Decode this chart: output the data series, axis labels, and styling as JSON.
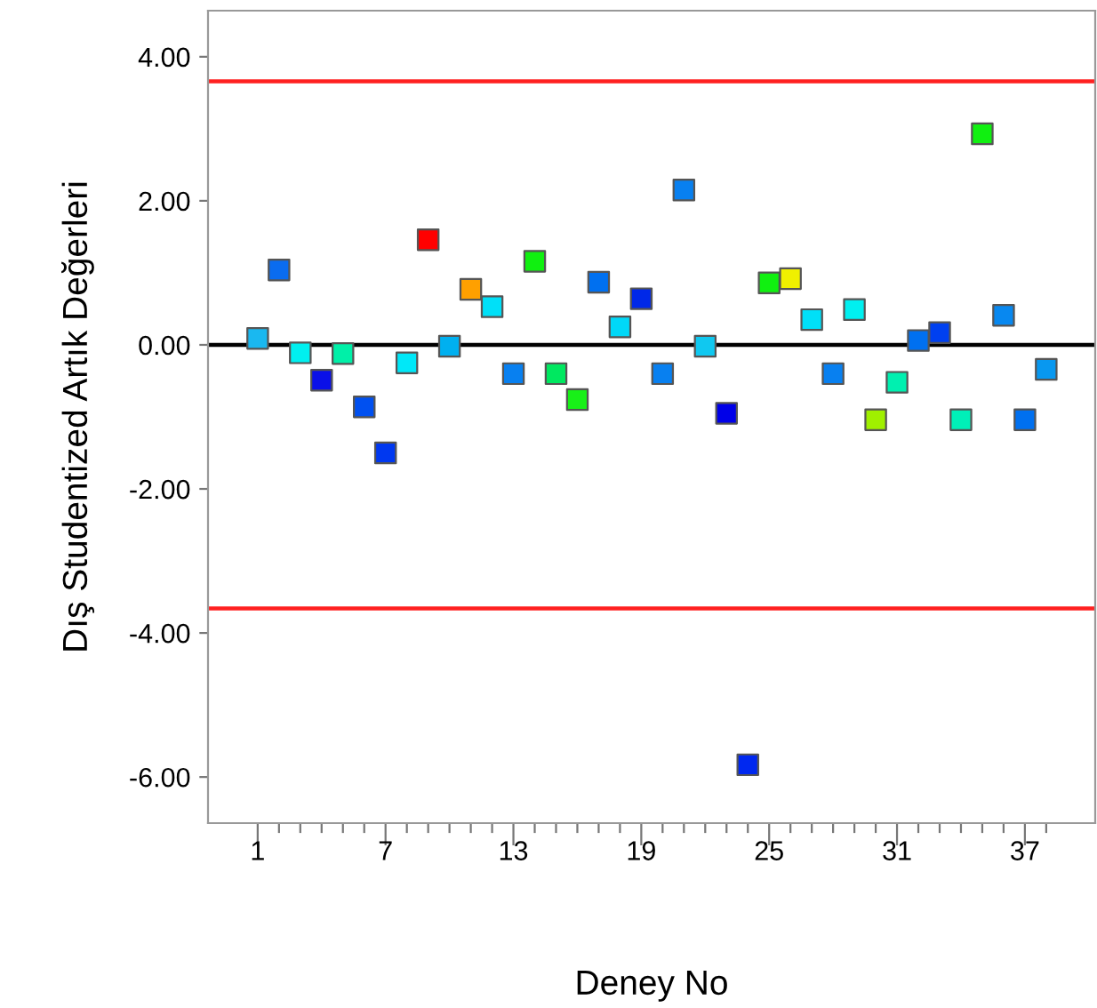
{
  "chart_data": {
    "type": "scatter",
    "xlabel": "Deney No",
    "ylabel": "Dış Studentized Artık Değerleri",
    "x": [
      1,
      2,
      3,
      4,
      5,
      6,
      7,
      8,
      9,
      10,
      11,
      12,
      13,
      14,
      15,
      16,
      17,
      18,
      19,
      20,
      21,
      22,
      23,
      24,
      25,
      26,
      27,
      28,
      29,
      30,
      31,
      32,
      33,
      34,
      35,
      36,
      37,
      38
    ],
    "values": [
      0.09,
      1.04,
      -0.11,
      -0.49,
      -0.12,
      -0.86,
      -1.5,
      -0.25,
      1.46,
      -0.02,
      0.77,
      0.53,
      -0.4,
      1.16,
      -0.4,
      -0.76,
      0.87,
      0.25,
      0.64,
      -0.4,
      2.15,
      -0.02,
      -0.95,
      -5.83,
      0.86,
      0.92,
      0.35,
      -0.4,
      0.49,
      -1.04,
      -0.52,
      0.06,
      0.17,
      -1.04,
      2.93,
      0.41,
      -1.04,
      -0.34
    ],
    "colors": [
      "#1ab8f0",
      "#0a6cf0",
      "#00f0f0",
      "#0a10e8",
      "#00f0a8",
      "#0050f0",
      "#0038f0",
      "#00e8f8",
      "#ff0000",
      "#00b0f0",
      "#ffa000",
      "#00e0f8",
      "#0880f0",
      "#10f010",
      "#00e860",
      "#18f018",
      "#0070f0",
      "#00d8f8",
      "#0028e8",
      "#0880f0",
      "#0880f0",
      "#10c8f0",
      "#0000e8",
      "#0028f0",
      "#10f010",
      "#f0f000",
      "#00e0f8",
      "#0880f0",
      "#00f0f0",
      "#a0f000",
      "#00f0b0",
      "#0070f0",
      "#0040f0",
      "#00f0b8",
      "#10f010",
      "#0888f0",
      "#0070f0",
      "#0898f0"
    ],
    "marker": "square",
    "xlim": [
      -1.33,
      40.3
    ],
    "ylim": [
      -6.64,
      4.64
    ],
    "xticks": [
      1,
      {
        "value": 2,
        "label": null
      },
      {
        "value": 3,
        "label": null
      },
      {
        "value": 4,
        "label": null
      },
      {
        "value": 5,
        "label": null
      },
      {
        "value": 6,
        "label": null
      },
      7,
      {
        "value": 8,
        "label": null
      },
      {
        "value": 9,
        "label": null
      },
      {
        "value": 10,
        "label": null
      },
      {
        "value": 11,
        "label": null
      },
      {
        "value": 12,
        "label": null
      },
      13,
      {
        "value": 14,
        "label": null
      },
      {
        "value": 15,
        "label": null
      },
      {
        "value": 16,
        "label": null
      },
      {
        "value": 17,
        "label": null
      },
      {
        "value": 18,
        "label": null
      },
      19,
      {
        "value": 20,
        "label": null
      },
      {
        "value": 21,
        "label": null
      },
      {
        "value": 22,
        "label": null
      },
      {
        "value": 23,
        "label": null
      },
      {
        "value": 24,
        "label": null
      },
      25,
      {
        "value": 26,
        "label": null
      },
      {
        "value": 27,
        "label": null
      },
      {
        "value": 28,
        "label": null
      },
      {
        "value": 29,
        "label": null
      },
      {
        "value": 30,
        "label": null
      },
      31,
      {
        "value": 32,
        "label": null
      },
      {
        "value": 33,
        "label": null
      },
      {
        "value": 34,
        "label": null
      },
      {
        "value": 35,
        "label": null
      },
      {
        "value": 36,
        "label": null
      },
      37,
      {
        "value": 38,
        "label": null
      }
    ],
    "yticks": [
      {
        "value": 4,
        "label": "4.00"
      },
      {
        "value": 2,
        "label": "2.00"
      },
      {
        "value": 0,
        "label": "0.00"
      },
      {
        "value": -2,
        "label": "-2.00"
      },
      {
        "value": -4,
        "label": "-4.00"
      },
      {
        "value": -6,
        "label": "-6.00"
      }
    ],
    "ref_lines": [
      {
        "axis": "y",
        "value": 3.66,
        "color": "#ff2020"
      },
      {
        "axis": "y",
        "value": 0,
        "color": "#000000"
      },
      {
        "axis": "y",
        "value": -3.66,
        "color": "#ff2020"
      }
    ],
    "grid": false
  }
}
